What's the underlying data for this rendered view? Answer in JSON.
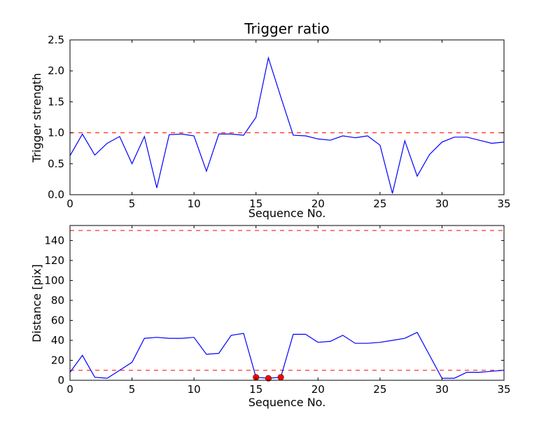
{
  "figure": {
    "background": "#ffffff",
    "line_color": "#0000ff",
    "threshold_color": "#ff0000",
    "marker_color": "#ff0000"
  },
  "chart_data": [
    {
      "type": "line",
      "title": "Trigger ratio",
      "xlabel": "Sequence No.",
      "ylabel": "Trigger strength",
      "xlim": [
        0,
        35
      ],
      "ylim": [
        0,
        2.5
      ],
      "grid": false,
      "legend": null,
      "xticks": {
        "values": [
          0,
          5,
          10,
          15,
          20,
          25,
          30,
          35
        ],
        "labels": [
          "0",
          "5",
          "10",
          "15",
          "20",
          "25",
          "30",
          "35"
        ]
      },
      "yticks": {
        "values": [
          0,
          0.5,
          1.0,
          1.5,
          2.0,
          2.5
        ],
        "labels": [
          "0.0",
          "0.5",
          "1.0",
          "1.5",
          "2.0",
          "2.5"
        ]
      },
      "threshold_lines": [
        {
          "name": "trigger-threshold",
          "y": 1.0,
          "color": "#ff0000",
          "style": "dashed"
        }
      ],
      "series": [
        {
          "name": "trigger-strength",
          "color": "#0000ff",
          "x": [
            0,
            1,
            2,
            3,
            4,
            5,
            6,
            7,
            8,
            9,
            10,
            11,
            12,
            13,
            14,
            15,
            16,
            17,
            18,
            19,
            20,
            21,
            22,
            23,
            24,
            25,
            26,
            27,
            28,
            29,
            30,
            31,
            32,
            33,
            34,
            35
          ],
          "values": [
            0.63,
            0.98,
            0.64,
            0.83,
            0.94,
            0.5,
            0.94,
            0.11,
            0.97,
            0.98,
            0.95,
            0.38,
            0.98,
            0.98,
            0.96,
            1.25,
            2.21,
            1.58,
            0.96,
            0.95,
            0.9,
            0.88,
            0.95,
            0.92,
            0.95,
            0.8,
            0.02,
            0.87,
            0.3,
            0.65,
            0.85,
            0.93,
            0.93,
            0.88,
            0.83,
            0.85
          ]
        }
      ]
    },
    {
      "type": "line",
      "title": "",
      "xlabel": "Sequence No.",
      "ylabel": "Distance [pix]",
      "xlim": [
        0,
        35
      ],
      "ylim": [
        0,
        155
      ],
      "grid": false,
      "legend": null,
      "xticks": {
        "values": [
          0,
          5,
          10,
          15,
          20,
          25,
          30,
          35
        ],
        "labels": [
          "0",
          "5",
          "10",
          "15",
          "20",
          "25",
          "30",
          "35"
        ]
      },
      "yticks": {
        "values": [
          0,
          20,
          40,
          60,
          80,
          100,
          120,
          140
        ],
        "labels": [
          "0",
          "20",
          "40",
          "60",
          "80",
          "100",
          "120",
          "140"
        ]
      },
      "threshold_lines": [
        {
          "name": "upper-distance-threshold",
          "y": 150,
          "color": "#ff0000",
          "style": "dashed"
        },
        {
          "name": "lower-distance-threshold",
          "y": 10,
          "color": "#ff0000",
          "style": "dashed"
        }
      ],
      "series": [
        {
          "name": "distance",
          "color": "#0000ff",
          "x": [
            0,
            1,
            2,
            3,
            4,
            5,
            6,
            7,
            8,
            9,
            10,
            11,
            12,
            13,
            14,
            15,
            16,
            17,
            18,
            19,
            20,
            21,
            22,
            23,
            24,
            25,
            26,
            27,
            28,
            29,
            30,
            31,
            32,
            33,
            34,
            35
          ],
          "values": [
            8,
            25,
            3,
            2,
            10,
            18,
            42,
            43,
            42,
            42,
            43,
            26,
            27,
            45,
            47,
            3,
            2,
            3,
            46,
            46,
            38,
            39,
            45,
            37,
            37,
            38,
            40,
            42,
            48,
            25,
            2,
            2,
            8,
            8,
            9,
            10
          ]
        }
      ],
      "scatter": {
        "name": "trigger-events",
        "color": "#ff0000",
        "points": [
          [
            15,
            3
          ],
          [
            16,
            2
          ],
          [
            17,
            3
          ]
        ]
      }
    }
  ]
}
